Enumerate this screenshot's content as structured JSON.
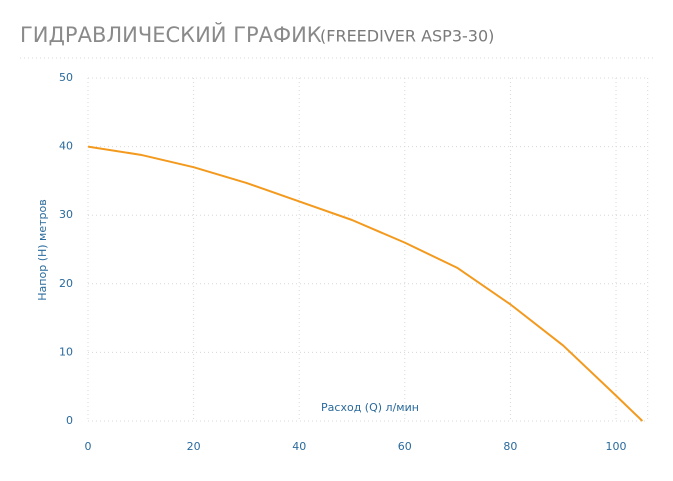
{
  "chart_data": {
    "type": "line",
    "title": "ГИДРАВЛИЧЕСКИЙ ГРАФИК",
    "subtitle": "(FREEDIVER ASP3-30)",
    "x_label": "Расход (Q) л/мин",
    "y_label": "Напор (H) метров",
    "x": [
      0,
      10,
      20,
      30,
      40,
      50,
      60,
      70,
      80,
      90,
      100,
      105
    ],
    "series": [
      {
        "name": "FREEDIVER ASP3-30",
        "color": "#f39a1e",
        "values": [
          40,
          38.8,
          37,
          34.7,
          32,
          29.3,
          26,
          22.3,
          17,
          11,
          3.7,
          0
        ]
      }
    ],
    "xlim": [
      0,
      106
    ],
    "xticks": [
      0,
      20,
      40,
      60,
      80,
      100
    ],
    "ylim": [
      0,
      50
    ],
    "yticks": [
      0,
      10,
      20,
      30,
      40,
      50
    ],
    "grid": true
  }
}
